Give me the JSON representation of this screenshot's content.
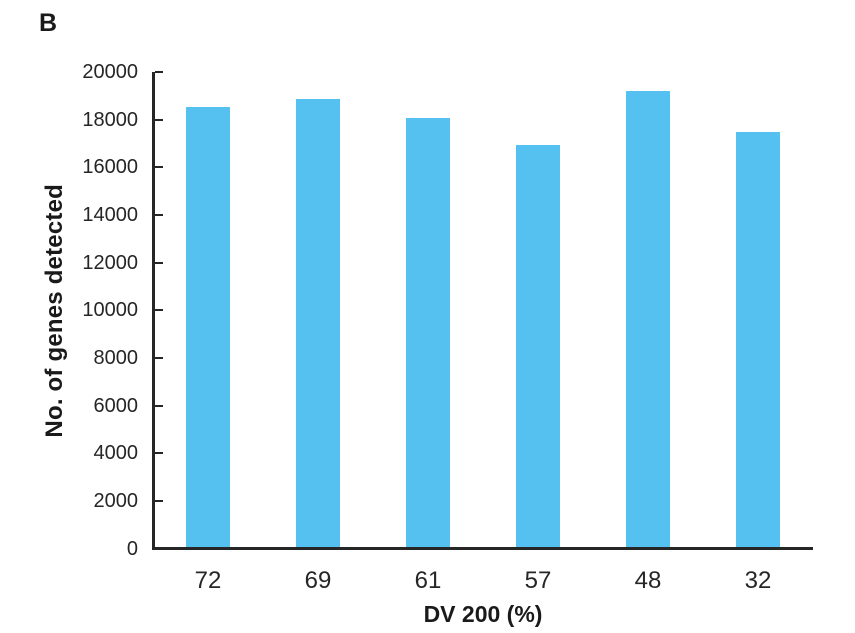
{
  "figure": {
    "panel_label": "B"
  },
  "chart_data": {
    "type": "bar",
    "title": "",
    "xlabel": "DV 200 (%)",
    "ylabel": "No. of genes detected",
    "categories": [
      "72",
      "69",
      "61",
      "57",
      "48",
      "32"
    ],
    "values": [
      18550,
      18850,
      18050,
      16950,
      19200,
      17500
    ],
    "ylim": [
      0,
      20000
    ],
    "yticks": [
      0,
      2000,
      4000,
      6000,
      8000,
      10000,
      12000,
      14000,
      16000,
      18000,
      20000
    ],
    "grid": false,
    "legend_position": "none",
    "bar_color": "#55C1F0",
    "axis_color": "#262626"
  }
}
